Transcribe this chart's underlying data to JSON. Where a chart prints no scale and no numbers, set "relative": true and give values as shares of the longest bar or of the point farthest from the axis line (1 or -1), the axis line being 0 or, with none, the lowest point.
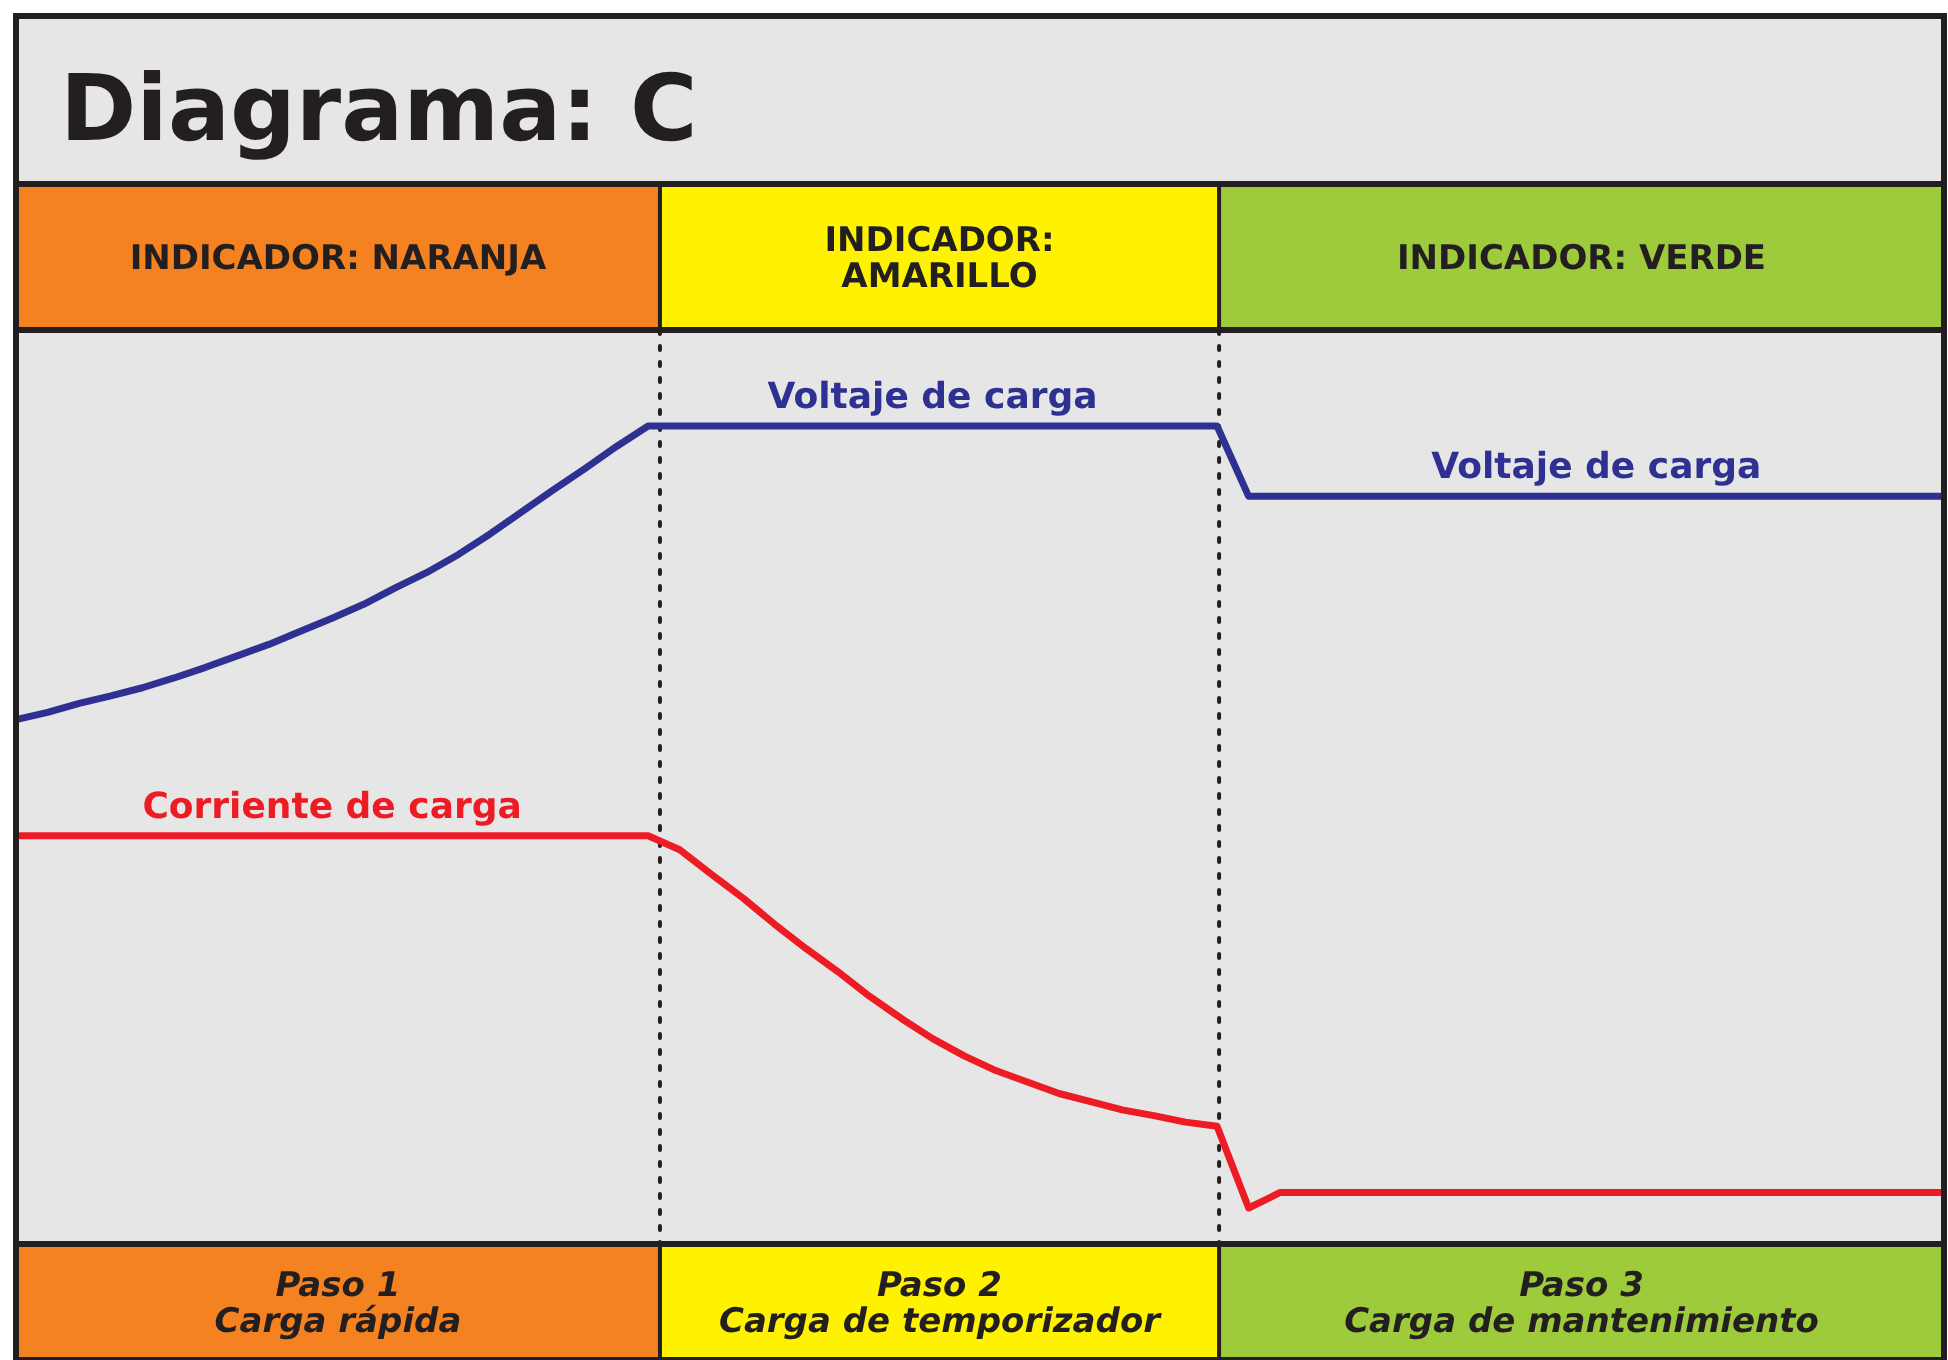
{
  "chart_data": [
    {
      "type": "other",
      "title": "Diagrama: C",
      "categories": [
        "INDICADOR: NARANJA",
        "INDICADOR:\nAMARILLO",
        "INDICADOR: VERDE"
      ],
      "colors": [
        "#f58220",
        "#fff200",
        "#9dcb3c"
      ]
    },
    {
      "type": "line",
      "relative": true,
      "line_style": "solid",
      "categories": [
        null,
        null,
        null,
        null,
        null,
        null,
        null,
        null,
        null,
        null,
        null,
        null,
        null,
        null,
        null,
        null,
        null,
        null,
        null,
        null,
        null,
        null,
        null,
        null,
        null,
        null,
        null,
        null,
        null,
        null,
        null,
        null,
        null,
        null,
        null,
        null,
        null,
        null,
        null,
        null,
        null,
        null,
        null,
        null,
        null,
        null,
        null,
        null,
        null,
        null,
        null,
        null,
        null,
        null,
        null,
        null,
        null,
        null,
        null,
        null,
        null,
        null
      ],
      "series": [
        {
          "name": "Voltaje de carga",
          "color": "#2e3192",
          "values": [
            0.641,
            0.65,
            0.661,
            0.67,
            0.68,
            0.692,
            0.705,
            0.719,
            0.733,
            0.749,
            0.765,
            0.782,
            0.802,
            0.821,
            0.843,
            0.868,
            0.895,
            0.922,
            0.948,
            0.975,
            1,
            1,
            1,
            1,
            1,
            1,
            1,
            1,
            1,
            1,
            1,
            1,
            1,
            1,
            1,
            1,
            1,
            1,
            1,
            0.914,
            0.914,
            0.914,
            0.914,
            0.914,
            0.914,
            0.914,
            0.914,
            0.914,
            0.914,
            0.914,
            0.914,
            0.914,
            0.914,
            0.914,
            0.914,
            0.914,
            0.914,
            0.914,
            0.914,
            0.914,
            0.914,
            0.914
          ]
        },
        {
          "name": "Corriente de carga",
          "color": "#ed1c24",
          "values": [
            0.499,
            0.499,
            0.499,
            0.499,
            0.499,
            0.499,
            0.499,
            0.499,
            0.499,
            0.499,
            0.499,
            0.499,
            0.499,
            0.499,
            0.499,
            0.499,
            0.499,
            0.499,
            0.499,
            0.499,
            0.499,
            0.482,
            0.452,
            0.423,
            0.391,
            0.361,
            0.333,
            0.303,
            0.276,
            0.251,
            0.23,
            0.212,
            0.198,
            0.184,
            0.174,
            0.164,
            0.157,
            0.149,
            0.144,
            0.044,
            0.063,
            0.063,
            0.063,
            0.063,
            0.063,
            0.063,
            0.063,
            0.063,
            0.063,
            0.063,
            0.063,
            0.063,
            0.063,
            0.063,
            0.063,
            0.063,
            0.063,
            0.063,
            0.063,
            0.063,
            0.063,
            0.063
          ]
        }
      ],
      "annotations": [
        "Voltaje de carga"
      ]
    },
    {
      "type": "other",
      "categories": [
        "Paso 1\nCarga rápida",
        "Paso 2\nCarga de temporizador",
        "Paso 3\nCarga de mantenimiento"
      ],
      "colors": [
        "#f58220",
        "#fff200",
        "#9dcb3c"
      ]
    }
  ]
}
